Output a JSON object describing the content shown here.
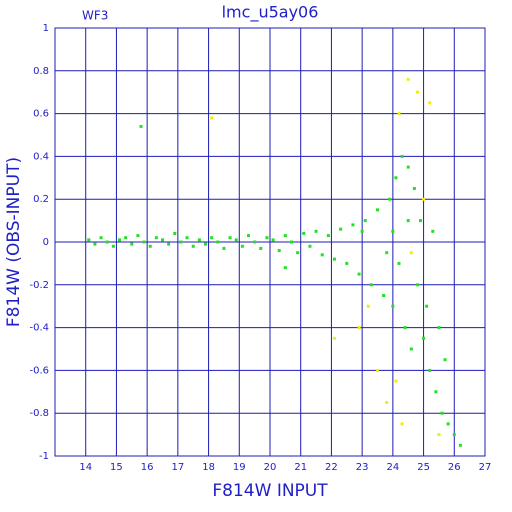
{
  "chart_data": {
    "type": "scatter",
    "title": "lmc_u5ay06",
    "annotation": "WF3",
    "x_label": "F814W INPUT",
    "y_label": "F814W (OBS-INPUT)",
    "xlim": [
      13,
      27
    ],
    "xticks": [
      14,
      15,
      16,
      17,
      18,
      19,
      20,
      21,
      22,
      23,
      24,
      25,
      26,
      27
    ],
    "ylim": [
      -1,
      1
    ],
    "yticks": [
      1,
      0.8,
      0.6,
      0.4,
      0.2,
      0,
      -0.2,
      -0.4,
      -0.6,
      -0.8,
      -1
    ],
    "grid": true,
    "grid_color": "#1c1cb4",
    "series": [
      {
        "color": "#22e022",
        "x": [
          14.1,
          14.3,
          14.5,
          14.7,
          14.9,
          15.1,
          15.3,
          15.5,
          15.7,
          15.9,
          16.1,
          16.3,
          16.5,
          16.7,
          16.9,
          17.1,
          17.3,
          17.5,
          17.7,
          17.9,
          18.1,
          18.3,
          18.5,
          18.7,
          18.9,
          19.1,
          19.3,
          19.5,
          19.7,
          19.9,
          20.1,
          20.3,
          20.5,
          20.7,
          20.9,
          21.1,
          21.3,
          21.5,
          21.7,
          21.9,
          22.1,
          22.3,
          22.5,
          22.7,
          22.9,
          23.1,
          23.3,
          23.5,
          23.7,
          23.9,
          24.0,
          24.1,
          24.2,
          24.3,
          24.4,
          24.5,
          24.6,
          24.7,
          24.8,
          24.9,
          25.0,
          25.1,
          25.2,
          25.3,
          25.4,
          25.5,
          25.6,
          25.7,
          25.8,
          26.0,
          26.2,
          15.8,
          20.5,
          23,
          24,
          24.5,
          23.8
        ],
        "values": [
          0.01,
          -0.01,
          0.02,
          0,
          -0.02,
          0.01,
          0.02,
          -0.01,
          0.03,
          0,
          -0.02,
          0.02,
          0.01,
          -0.01,
          0.04,
          0,
          0.02,
          -0.02,
          0.01,
          -0.01,
          0.02,
          0,
          -0.03,
          0.02,
          0.01,
          -0.02,
          0.03,
          0,
          -0.03,
          0.02,
          0.01,
          -0.04,
          0.03,
          0,
          -0.05,
          0.04,
          -0.02,
          0.05,
          -0.06,
          0.03,
          -0.08,
          0.06,
          -0.1,
          0.08,
          -0.15,
          0.1,
          -0.2,
          0.15,
          -0.25,
          0.2,
          -0.3,
          0.3,
          -0.1,
          0.4,
          -0.4,
          0.35,
          -0.5,
          0.25,
          -0.2,
          0.1,
          -0.45,
          -0.3,
          -0.6,
          0.05,
          -0.7,
          -0.4,
          -0.8,
          -0.55,
          -0.85,
          -0.9,
          -0.95,
          0.54,
          -0.12,
          0.05,
          0.05,
          0.1,
          -0.05
        ]
      },
      {
        "color": "#f0f000",
        "x": [
          24.5,
          24.8,
          24.2,
          25.2,
          22.9,
          23.5,
          23.8,
          24.3,
          22.1,
          25.0,
          24.6,
          23.2,
          25.5,
          24.1,
          18.1
        ],
        "values": [
          0.76,
          0.7,
          0.6,
          0.65,
          -0.4,
          -0.6,
          -0.75,
          -0.85,
          -0.45,
          0.2,
          -0.05,
          -0.3,
          -0.9,
          -0.65,
          0.58
        ]
      }
    ]
  }
}
